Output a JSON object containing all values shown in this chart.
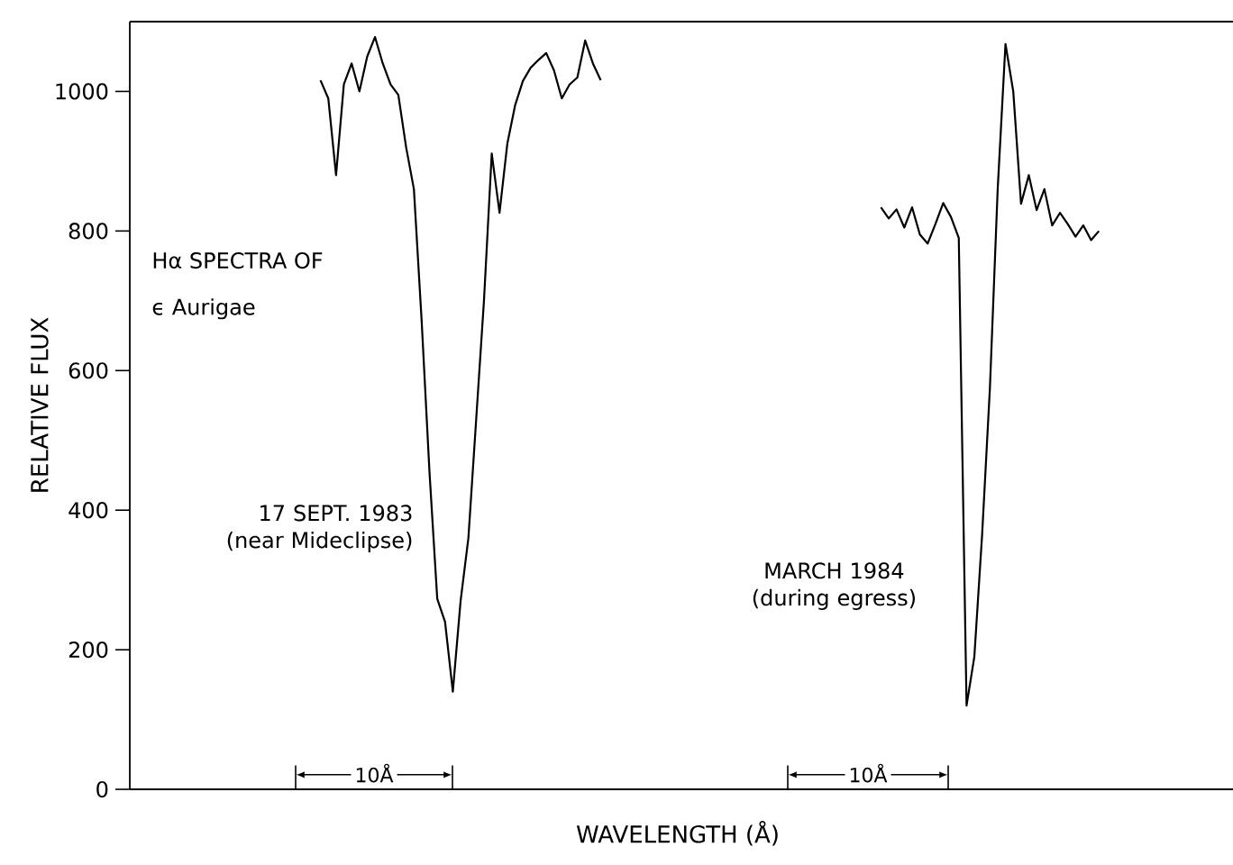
{
  "chart_data": {
    "type": "line",
    "xlabel": "WAVELENGTH (Å)",
    "ylabel": "RELATIVE FLUX",
    "tick_labels": "y",
    "categories": [
      null,
      null,
      null,
      null,
      null,
      null,
      null,
      null,
      null,
      null,
      null,
      null,
      null,
      null,
      null,
      null,
      null,
      null,
      null,
      null,
      null,
      null,
      null,
      null,
      null,
      null,
      null,
      null,
      null,
      null,
      null,
      null,
      null,
      null,
      null,
      null,
      null,
      null,
      null,
      null,
      null,
      null,
      null,
      null,
      null,
      null,
      null,
      null,
      null,
      null,
      null,
      null,
      null,
      null,
      null,
      null,
      null,
      null,
      null,
      null,
      null,
      null,
      null,
      null,
      null,
      null,
      null,
      null,
      null,
      null,
      null,
      null,
      null,
      null,
      null,
      null,
      null,
      null,
      null,
      null,
      null,
      null,
      null,
      null,
      null,
      null,
      null,
      null,
      null,
      null,
      null,
      null,
      null,
      null,
      null,
      null,
      null,
      null,
      null,
      null,
      null,
      null,
      null,
      null,
      null,
      null,
      null,
      null,
      null,
      null,
      null,
      null,
      null,
      null,
      null,
      null,
      null,
      null,
      null,
      null,
      null,
      null,
      null,
      null,
      null,
      null,
      null,
      null,
      null,
      null,
      null,
      null,
      null,
      null,
      null,
      null,
      null,
      null,
      null,
      null,
      null,
      null
    ],
    "ylim": [
      0,
      1100
    ],
    "yticks": [
      0,
      200,
      400,
      600,
      800,
      1000
    ],
    "series": [
      {
        "name": "17 SEPT. 1983 (near Mideclipse)",
        "color": "#000000",
        "values": [
          null,
          null,
          null,
          null,
          null,
          null,
          null,
          null,
          null,
          null,
          null,
          null,
          null,
          null,
          null,
          null,
          null,
          null,
          null,
          null,
          null,
          null,
          null,
          null,
          1016,
          990,
          880,
          1010,
          1040,
          1000,
          1050,
          1078,
          1040,
          1010,
          995,
          920,
          860,
          670,
          455,
          273,
          240,
          140,
          270,
          360,
          530,
          700,
          911,
          826,
          925,
          980,
          1015,
          1034,
          1045,
          1055,
          1030,
          990,
          1010,
          1020,
          1073,
          1040,
          1016,
          null,
          null,
          null,
          null,
          null,
          null,
          null,
          null,
          null,
          null,
          null,
          null,
          null,
          null,
          null,
          null,
          null,
          null,
          null,
          null,
          null,
          null,
          null,
          null,
          null,
          null,
          null,
          null,
          null,
          null,
          null,
          null,
          null,
          null,
          null,
          null,
          null,
          null,
          null,
          null,
          null,
          null,
          null,
          null,
          null,
          null,
          null,
          null,
          null,
          null,
          null,
          null,
          null,
          null,
          null,
          null,
          null,
          null,
          null,
          null,
          null,
          null,
          null,
          null,
          null,
          null,
          null,
          null,
          null,
          null,
          null,
          null,
          null,
          null,
          null,
          null,
          null,
          null,
          null,
          null,
          null
        ]
      },
      {
        "name": "MARCH 1984 (during egress)",
        "color": "#000000",
        "values": [
          null,
          null,
          null,
          null,
          null,
          null,
          null,
          null,
          null,
          null,
          null,
          null,
          null,
          null,
          null,
          null,
          null,
          null,
          null,
          null,
          null,
          null,
          null,
          null,
          null,
          null,
          null,
          null,
          null,
          null,
          null,
          null,
          null,
          null,
          null,
          null,
          null,
          null,
          null,
          null,
          null,
          null,
          null,
          null,
          null,
          null,
          null,
          null,
          null,
          null,
          null,
          null,
          null,
          null,
          null,
          null,
          null,
          null,
          null,
          null,
          null,
          null,
          null,
          null,
          null,
          null,
          null,
          null,
          null,
          null,
          null,
          null,
          null,
          null,
          null,
          null,
          null,
          null,
          null,
          null,
          null,
          null,
          null,
          null,
          null,
          null,
          null,
          null,
          null,
          null,
          null,
          null,
          null,
          null,
          null,
          null,
          834,
          818,
          831,
          805,
          834,
          795,
          782,
          810,
          840,
          820,
          790,
          120,
          190,
          365,
          575,
          860,
          1068,
          1000,
          839,
          880,
          830,
          860,
          808,
          826,
          810,
          792,
          808,
          787,
          800,
          null,
          null,
          null,
          null,
          null,
          null,
          null,
          null,
          null,
          null,
          null,
          null,
          null,
          null,
          null,
          null,
          null
        ]
      }
    ],
    "annotations": [
      "Hα SPECTRA OF",
      "ϵ Aurigae",
      "10Å",
      "10Å"
    ]
  }
}
